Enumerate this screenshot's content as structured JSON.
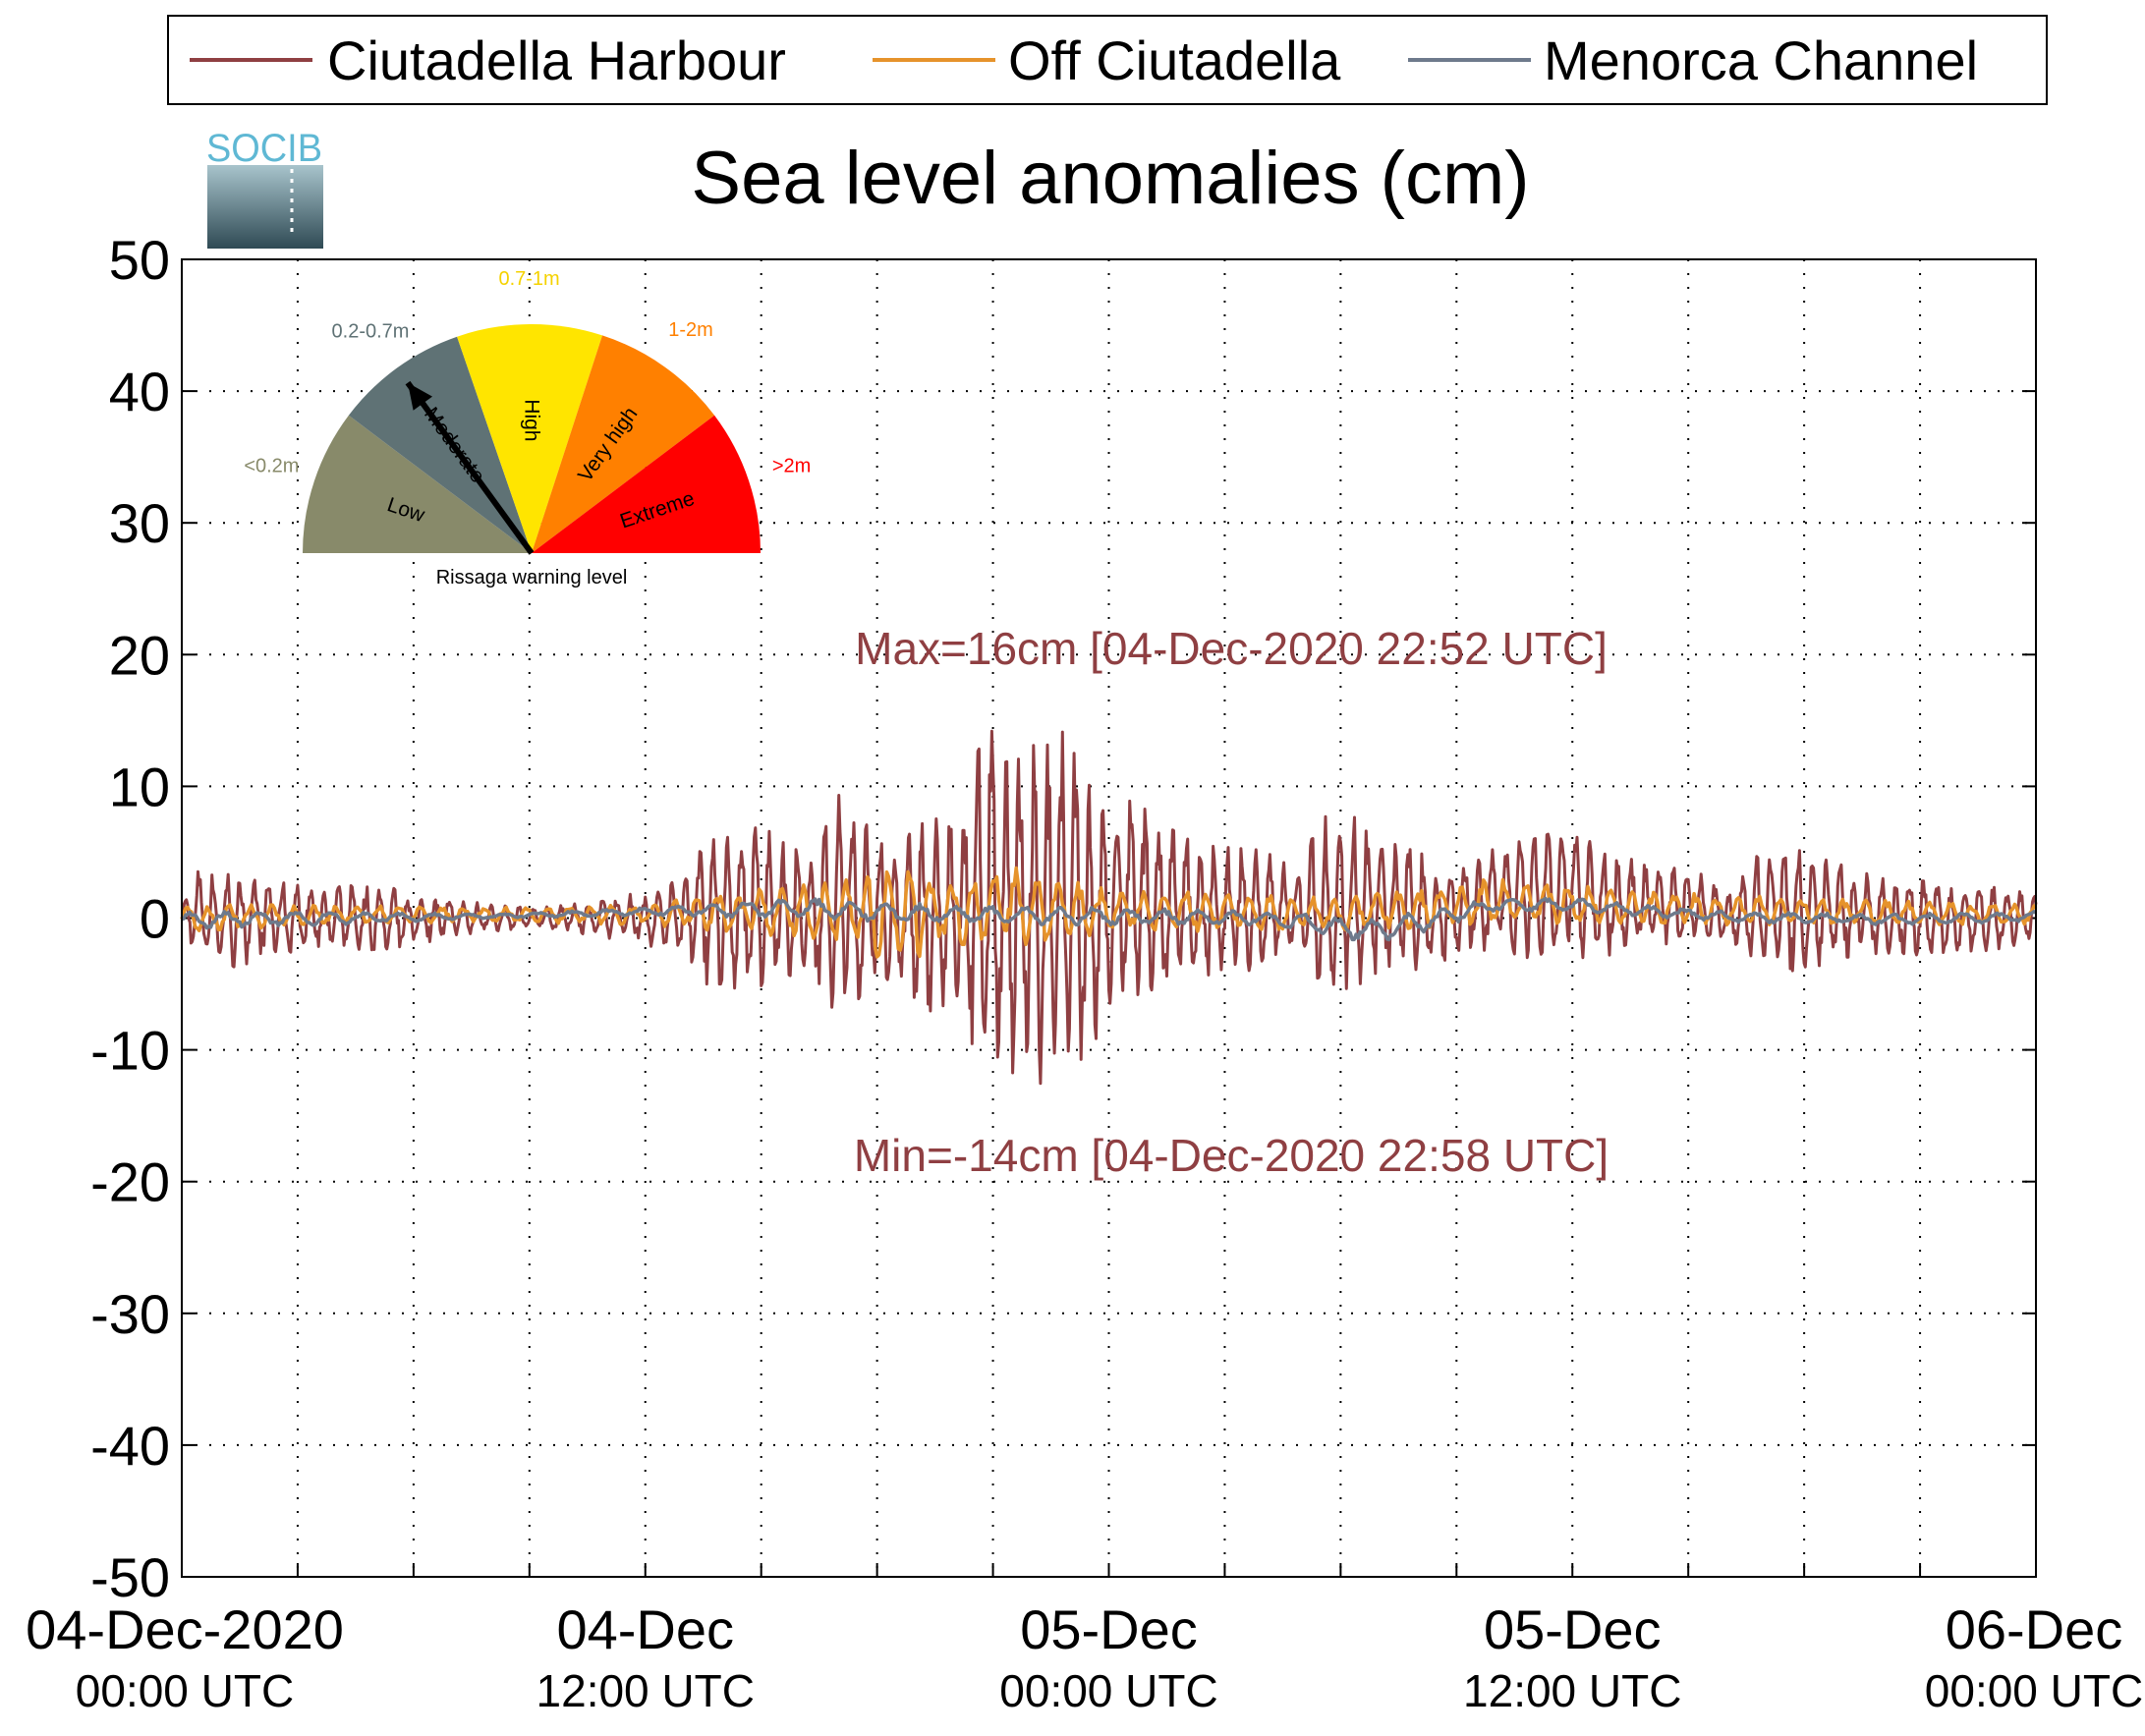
{
  "logo_text": "SOCIB",
  "chart_data": {
    "type": "line",
    "title": "Sea level anomalies (cm)",
    "xlabel": "",
    "ylabel": "",
    "ylim": [
      -50,
      50
    ],
    "yticks": [
      50,
      40,
      30,
      20,
      10,
      0,
      -10,
      -20,
      -30,
      -40,
      -50
    ],
    "xlim_hours": [
      0,
      48
    ],
    "xticks": [
      {
        "line1": "04-Dec-2020",
        "line2": "00:00 UTC",
        "hour": 0
      },
      {
        "line1": "04-Dec",
        "line2": "12:00 UTC",
        "hour": 12
      },
      {
        "line1": "05-Dec",
        "line2": "00:00 UTC",
        "hour": 24
      },
      {
        "line1": "05-Dec",
        "line2": "12:00 UTC",
        "hour": 36
      },
      {
        "line1": "06-Dec",
        "line2": "00:00 UTC",
        "hour": 48
      }
    ],
    "grid": true,
    "legend_position": "top",
    "series": [
      {
        "name": "Ciutadella Harbour",
        "color": "#8f3f42",
        "envelope": {
          "hours": [
            0,
            0.5,
            1,
            1.5,
            2,
            3,
            4,
            5,
            6,
            7,
            8,
            9,
            10,
            11,
            12,
            13,
            13.5,
            14,
            15,
            16,
            17,
            18,
            19,
            20,
            20.5,
            21,
            21.5,
            22,
            22.5,
            22.87,
            23,
            23.5,
            24,
            24.5,
            25,
            26,
            27,
            28,
            29,
            29.5,
            30,
            30.5,
            31,
            32,
            33,
            34,
            35,
            36,
            37,
            38,
            39,
            40,
            41,
            42,
            43,
            44,
            45,
            46,
            47,
            48
          ],
          "upper": [
            1,
            4,
            3,
            4,
            3,
            2.5,
            2.5,
            2.5,
            2,
            1.5,
            1,
            0.8,
            1,
            1.5,
            2,
            3,
            7,
            6,
            7,
            5,
            10,
            6,
            7,
            8,
            12,
            15,
            14,
            13,
            14,
            16,
            14,
            10,
            8,
            10,
            8,
            6,
            6,
            5,
            4,
            8,
            9,
            8,
            6,
            5,
            4,
            6,
            6,
            7,
            5,
            4,
            4,
            2,
            6,
            5,
            4,
            3,
            3,
            2.5,
            2.5,
            2
          ],
          "lower": [
            -1,
            -3,
            -3,
            -4,
            -3,
            -2.5,
            -2.5,
            -2.5,
            -2,
            -1.5,
            -1,
            -0.8,
            -1,
            -1.5,
            -2,
            -3,
            -5,
            -5,
            -6,
            -5,
            -8,
            -6,
            -7,
            -8,
            -11,
            -13,
            -12,
            -13,
            -12,
            -13,
            -14,
            -10,
            -8,
            -7,
            -6,
            -5,
            -5,
            -4,
            -3,
            -6,
            -6,
            -5,
            -4,
            -4,
            -3,
            -3,
            -3,
            -3,
            -3,
            -2,
            -2,
            -2,
            -4,
            -4,
            -3,
            -3,
            -3,
            -2.5,
            -2.5,
            -2
          ]
        },
        "annotations": [
          {
            "text": "Max=16cm [04-Dec-2020 22:52 UTC]",
            "value": 16
          },
          {
            "text": "Min=-14cm [04-Dec-2020 22:58 UTC]",
            "value": -14
          }
        ]
      },
      {
        "name": "Off Ciutadella",
        "color": "#e6932b",
        "envelope": {
          "hours": [
            0,
            4,
            8,
            12,
            14,
            17,
            18,
            20,
            22,
            23,
            24,
            26,
            30,
            34,
            38,
            42,
            48
          ],
          "upper": [
            1,
            1,
            0.8,
            1,
            2,
            3,
            4,
            3,
            4,
            3.5,
            2,
            2,
            1.5,
            3,
            2,
            1.5,
            1
          ],
          "lower": [
            -1,
            -0.5,
            -0.3,
            -0.5,
            -1,
            -2,
            -4,
            -2,
            -2,
            -2.5,
            -1,
            -1,
            -1,
            -0.5,
            -0.5,
            -0.5,
            -0.5
          ]
        }
      },
      {
        "name": "Menorca Channel",
        "color": "#6e7a8c",
        "envelope": {
          "hours": [
            0,
            4,
            8,
            12,
            16,
            20,
            24,
            28,
            31,
            34,
            36,
            40,
            44,
            48
          ],
          "upper": [
            0.5,
            0.5,
            0.3,
            0.8,
            1.5,
            1,
            0.8,
            0.5,
            0,
            1.5,
            1.5,
            0.5,
            0.3,
            0.5
          ],
          "lower": [
            -0.8,
            -0.5,
            0,
            0.2,
            0,
            -0.5,
            -0.5,
            -0.5,
            -2,
            0.5,
            0.5,
            -0.3,
            -0.5,
            -0.3
          ]
        }
      }
    ]
  },
  "gauge": {
    "title": "Rissaga warning level",
    "segments": [
      {
        "label": "Low",
        "range": "<0.2m",
        "color": "#888a6a",
        "range_color": "#888a6a",
        "start": 180,
        "end": 143
      },
      {
        "label": "Moderate",
        "range": "0.2-0.7m",
        "color": "#5f7275",
        "range_color": "#5f7275",
        "start": 143,
        "end": 109
      },
      {
        "label": "High",
        "range": "0.7-1m",
        "color": "#ffe500",
        "range_color": "#f5d200",
        "start": 109,
        "end": 72
      },
      {
        "label": "Very high",
        "range": "1-2m",
        "color": "#ff8000",
        "range_color": "#ff8000",
        "start": 72,
        "end": 37
      },
      {
        "label": "Extreme",
        "range": ">2m",
        "color": "#ff0000",
        "range_color": "#ff0000",
        "start": 37,
        "end": 0
      }
    ],
    "needle_segment": "Moderate"
  }
}
